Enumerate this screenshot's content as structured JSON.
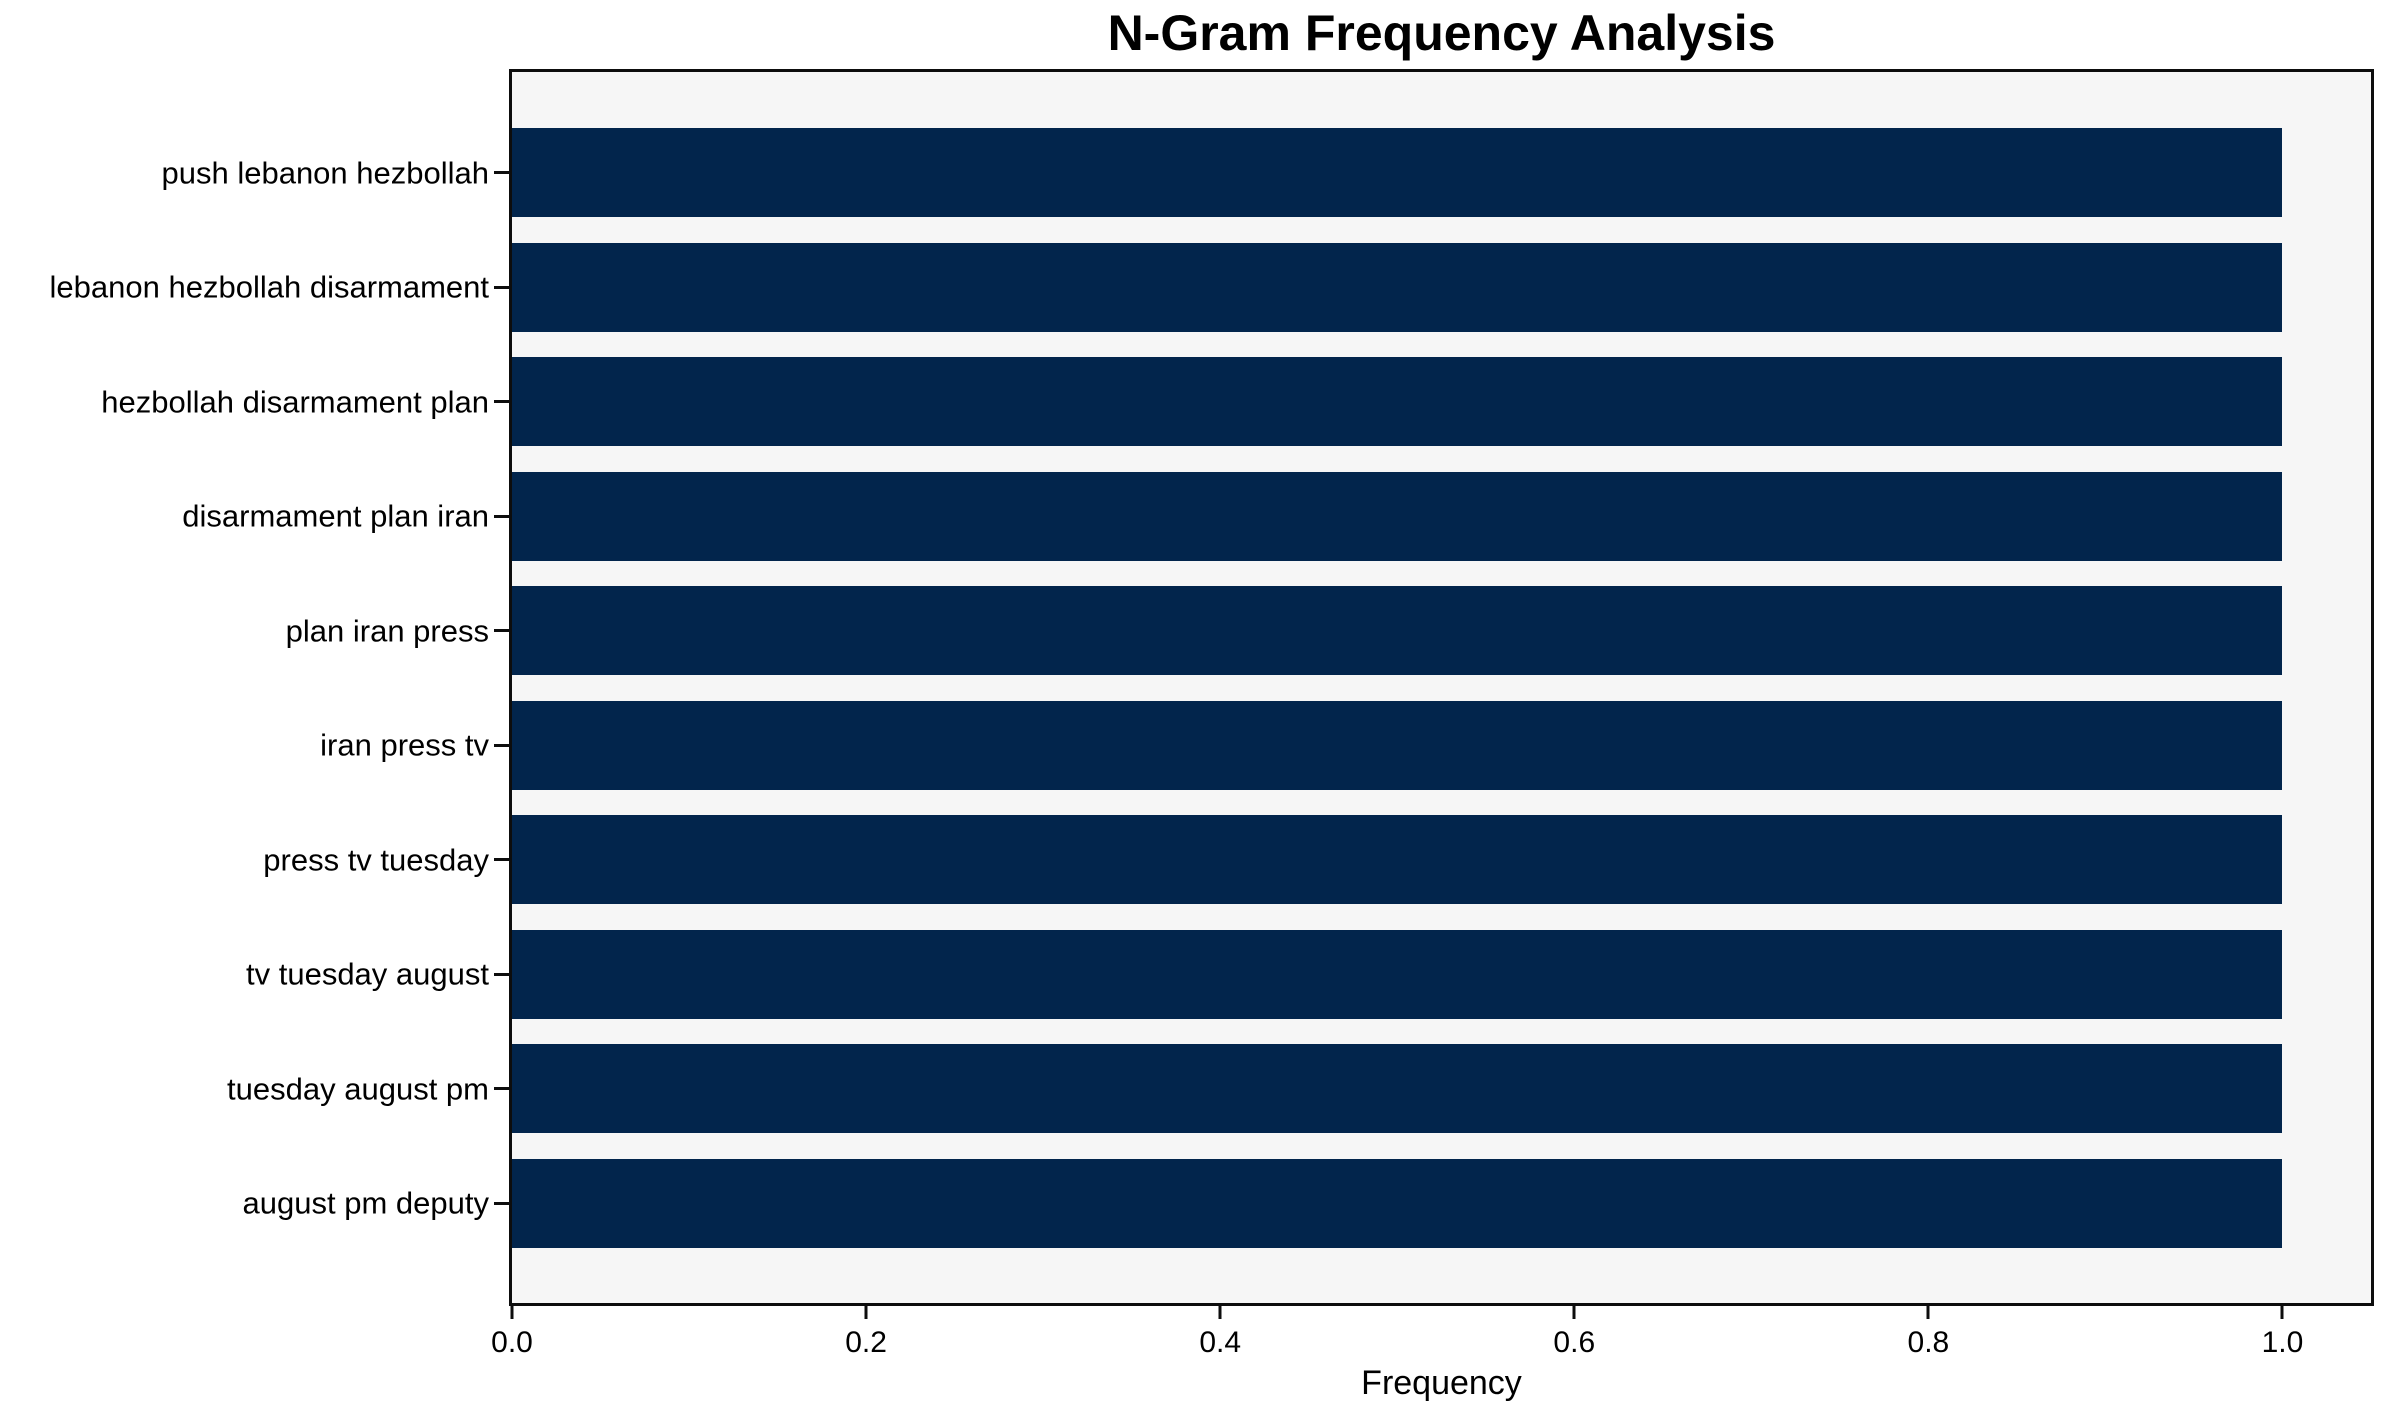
{
  "chart_data": {
    "type": "bar",
    "orientation": "horizontal",
    "title": "N-Gram Frequency Analysis",
    "xlabel": "Frequency",
    "ylabel": "",
    "categories": [
      "push lebanon hezbollah",
      "lebanon hezbollah disarmament",
      "hezbollah disarmament plan",
      "disarmament plan iran",
      "plan iran press",
      "iran press tv",
      "press tv tuesday",
      "tv tuesday august",
      "tuesday august pm",
      "august pm deputy"
    ],
    "values": [
      1.0,
      1.0,
      1.0,
      1.0,
      1.0,
      1.0,
      1.0,
      1.0,
      1.0,
      1.0
    ],
    "x_tick_labels": [
      "0.0",
      "0.2",
      "0.4",
      "0.6",
      "0.8",
      "1.0"
    ],
    "x_tick_values": [
      0.0,
      0.2,
      0.4,
      0.6,
      0.8,
      1.0
    ],
    "xlim": [
      0,
      1.05
    ],
    "grid": false,
    "legend": null,
    "colors": {
      "bar": "#02254c",
      "plot_background": "#f6f6f6",
      "figure_background": "#ffffff",
      "axis": "#0d0d0d",
      "text": "#000000"
    }
  }
}
